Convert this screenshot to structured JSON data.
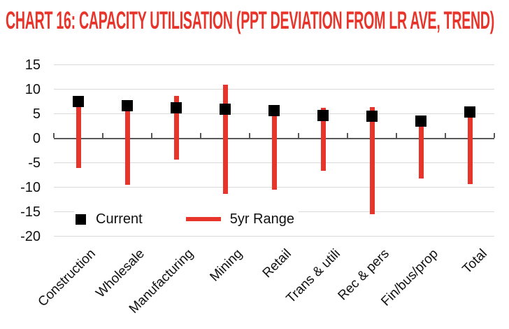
{
  "title": "CHART 16: CAPACITY UTILISATION (PPT DEVIATION FROM LR AVE, TREND)",
  "colors": {
    "accent_red": "#E7352B",
    "marker_black": "#000000",
    "gridline_gray": "#D9D9D9",
    "axis_gray": "#595959",
    "text": "#111111"
  },
  "legend": {
    "current_label": "Current",
    "range_label": "5yr Range"
  },
  "chart_data": {
    "type": "bar",
    "subtype": "vertical-range-bars-with-square-current-markers",
    "title": "CHART 16: CAPACITY UTILISATION (PPT DEVIATION FROM LR AVE, TREND)",
    "categories": [
      "Construction",
      "Wholesale",
      "Manufacturing",
      "Mining",
      "Retail",
      "Trans & utili",
      "Rec & pers",
      "Fin/bus/prop",
      "Total"
    ],
    "series": [
      {
        "name": "Current",
        "style": "black-square-marker",
        "values": [
          7.5,
          6.6,
          6.2,
          6.0,
          5.7,
          4.7,
          4.5,
          3.5,
          5.3
        ]
      },
      {
        "name": "5yr Range",
        "style": "red-vertical-range-bar",
        "high": [
          7.5,
          6.6,
          8.6,
          11.0,
          5.7,
          6.2,
          6.4,
          3.5,
          5.3
        ],
        "low": [
          -6.0,
          -9.5,
          -4.3,
          -11.3,
          -10.5,
          -6.7,
          -15.5,
          -8.2,
          -9.3
        ]
      }
    ],
    "xlabel": "",
    "ylabel": "",
    "ylim": [
      -20,
      15
    ],
    "yticks": [
      15,
      10,
      5,
      0,
      -5,
      -10,
      -15,
      -20
    ],
    "grid": true,
    "x_labels_rotation_deg": -45,
    "legend_position": "inside-bottom-left"
  }
}
